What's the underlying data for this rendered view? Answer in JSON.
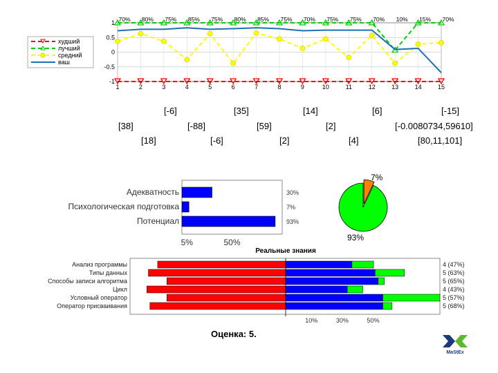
{
  "line_chart": {
    "type": "line",
    "x": [
      1,
      2,
      3,
      4,
      5,
      6,
      7,
      8,
      9,
      10,
      11,
      12,
      13,
      14,
      15
    ],
    "ylim": [
      -1,
      1
    ],
    "y_ticks": [
      "1",
      "0.5",
      "0",
      "-0.5",
      "-1"
    ],
    "series": [
      {
        "name": "худший",
        "color": "#ff0000",
        "dash": "6,4",
        "marker": "tri-down",
        "values": [
          -1,
          -1,
          -1,
          -1,
          -1,
          -1,
          -1,
          -1,
          -1,
          -1,
          -1,
          -1,
          -1,
          -1,
          -1
        ]
      },
      {
        "name": "лучший",
        "color": "#00cc00",
        "dash": "6,4",
        "marker": "tri-up",
        "values": [
          1,
          1,
          1,
          1,
          1,
          1,
          1,
          1,
          1,
          1,
          1,
          1,
          0.07,
          1,
          1
        ]
      },
      {
        "name": "средний",
        "color": "#ffff00",
        "dash": "6,4",
        "marker": "circle",
        "values": [
          0.37,
          0.63,
          0.37,
          -0.25,
          0.63,
          -0.38,
          0.65,
          0.45,
          0.13,
          0.45,
          -0.18,
          0.57,
          -0.38,
          0.27,
          0.32
        ]
      },
      {
        "name": "ваш",
        "color": "#1f6fb5",
        "dash": "",
        "marker": "none",
        "values": [
          0.73,
          0.78,
          0.78,
          0.83,
          0.78,
          0.8,
          0.83,
          0.8,
          0.73,
          0.75,
          0.75,
          0.75,
          0.09,
          0.13,
          -0.7
        ]
      }
    ],
    "top_labels": [
      "70%",
      "80%",
      "75%",
      "85%",
      "75%",
      "80%",
      "85%",
      "75%",
      "70%",
      "75%",
      "75%",
      "70%",
      "10%",
      "15%",
      "70%"
    ]
  },
  "answers": {
    "row1": [
      "[-6]",
      "[35]",
      "[14]",
      "[6]",
      "[-15]"
    ],
    "row2": [
      "[38]",
      "[-88]",
      "[59]",
      "[2]",
      "[-0.0080734,59610]"
    ],
    "row3": [
      "[18]",
      "[-6]",
      "[2]",
      "[4]",
      "[80,11,101]"
    ]
  },
  "chart_data": [
    {
      "type": "bar",
      "categories": [
        "Адекватность",
        "Психологическая подготовка",
        "Потенциал"
      ],
      "values": [
        30,
        7,
        93
      ],
      "value_labels": [
        "30%",
        "7%",
        "93%"
      ],
      "xlim": [
        0,
        100
      ],
      "x_ticks": [
        "5%",
        "50%"
      ],
      "color": "#0000ff"
    },
    {
      "type": "pie",
      "slices": [
        {
          "label": "7%",
          "value": 7,
          "color": "#ff8000"
        },
        {
          "label": "93%",
          "value": 93,
          "color": "#00ff00"
        }
      ]
    },
    {
      "type": "bar",
      "title": "Реальные знания",
      "categories": [
        "Анализ программы",
        "Типы данных",
        "Способы записи алгоритма",
        "Цикл",
        "Условный оператор",
        "Оператор присваивания"
      ],
      "red_left": [
        -0.83,
        -0.89,
        -0.77,
        -0.9,
        -0.77,
        -0.88
      ],
      "blue": [
        0.43,
        0.58,
        0.6,
        0.4,
        0.63,
        0.63
      ],
      "green_extra": [
        0.14,
        0.19,
        0.04,
        0.1,
        0.37,
        0.06
      ],
      "value_labels": [
        "4 (47%)",
        "5 (63%)",
        "5 (65%)",
        "4 (43%)",
        "5 (57%)",
        "5 (68%)"
      ],
      "x_ticks": [
        "10%",
        "30%",
        "50%"
      ],
      "colors": {
        "red": "#ff0000",
        "blue": "#0000ff",
        "green": "#00ff00"
      }
    }
  ],
  "score": "Оценка: 5.",
  "logo": {
    "text": "MaStEx"
  }
}
